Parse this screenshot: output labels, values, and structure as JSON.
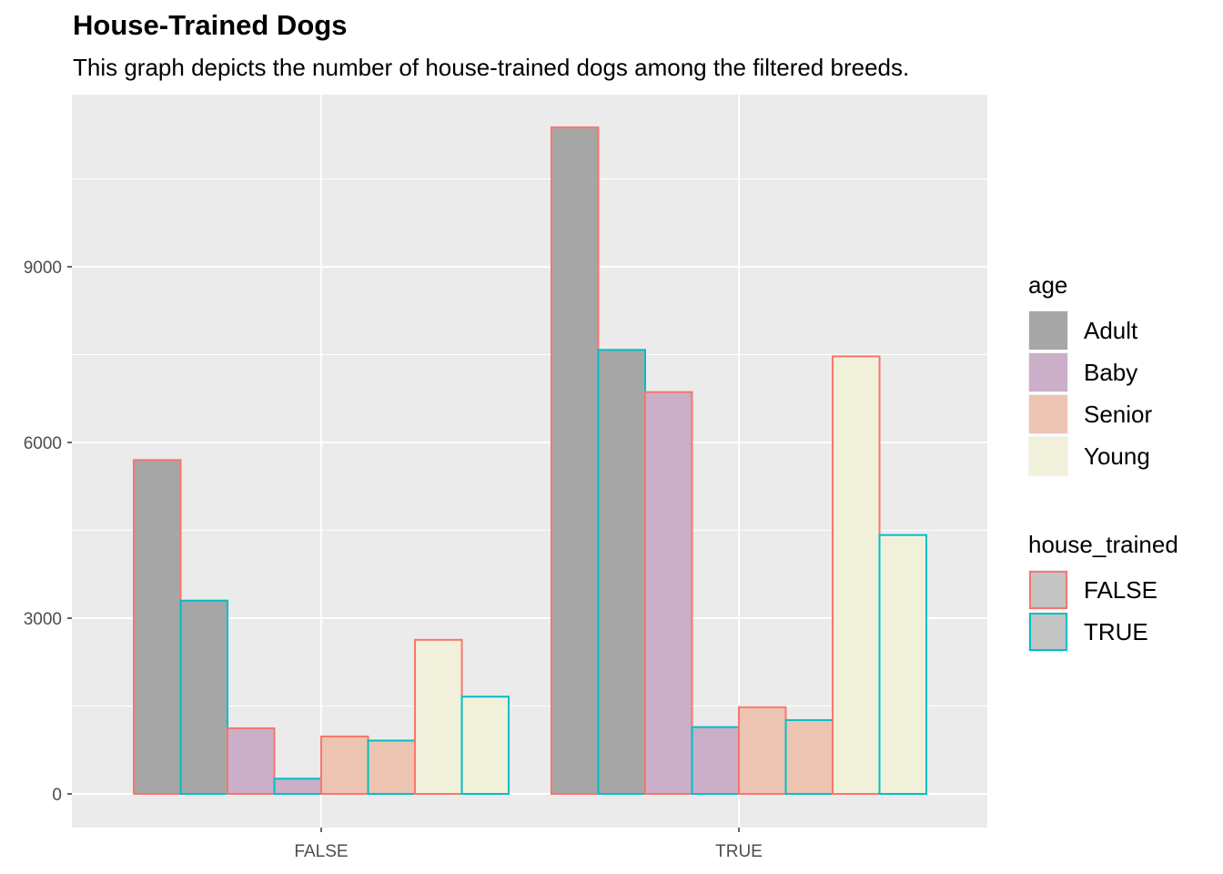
{
  "chart_data": {
    "type": "bar",
    "title": "House-Trained Dogs",
    "subtitle": "This graph depicts the number of house-trained dogs among the filtered breeds.",
    "xlabel": "",
    "ylabel": "",
    "ylim": [
      -600,
      11900
    ],
    "yticks": [
      0,
      3000,
      6000,
      9000
    ],
    "categories": [
      "FALSE",
      "TRUE"
    ],
    "grid": true,
    "legend_position": "right",
    "fill_legend": {
      "title": "age",
      "entries": [
        {
          "label": "Adult",
          "color": "#a6a6a6"
        },
        {
          "label": "Baby",
          "color": "#cbaec7"
        },
        {
          "label": "Senior",
          "color": "#edc4b2"
        },
        {
          "label": "Young",
          "color": "#f1f1db"
        }
      ]
    },
    "color_legend": {
      "title": "house_trained",
      "entries": [
        {
          "label": "FALSE",
          "color": "#f8766d"
        },
        {
          "label": "TRUE",
          "color": "#00bfc4"
        }
      ]
    },
    "bars": [
      {
        "category": "FALSE",
        "age": "Adult",
        "house_trained": "FALSE",
        "value": 5700
      },
      {
        "category": "FALSE",
        "age": "Adult",
        "house_trained": "TRUE",
        "value": 3300
      },
      {
        "category": "FALSE",
        "age": "Baby",
        "house_trained": "FALSE",
        "value": 1120
      },
      {
        "category": "FALSE",
        "age": "Baby",
        "house_trained": "TRUE",
        "value": 260
      },
      {
        "category": "FALSE",
        "age": "Senior",
        "house_trained": "FALSE",
        "value": 980
      },
      {
        "category": "FALSE",
        "age": "Senior",
        "house_trained": "TRUE",
        "value": 910
      },
      {
        "category": "FALSE",
        "age": "Young",
        "house_trained": "FALSE",
        "value": 2630
      },
      {
        "category": "FALSE",
        "age": "Young",
        "house_trained": "TRUE",
        "value": 1660
      },
      {
        "category": "TRUE",
        "age": "Adult",
        "house_trained": "FALSE",
        "value": 11380
      },
      {
        "category": "TRUE",
        "age": "Adult",
        "house_trained": "TRUE",
        "value": 7580
      },
      {
        "category": "TRUE",
        "age": "Baby",
        "house_trained": "FALSE",
        "value": 6860
      },
      {
        "category": "TRUE",
        "age": "Baby",
        "house_trained": "TRUE",
        "value": 1140
      },
      {
        "category": "TRUE",
        "age": "Senior",
        "house_trained": "FALSE",
        "value": 1480
      },
      {
        "category": "TRUE",
        "age": "Senior",
        "house_trained": "TRUE",
        "value": 1260
      },
      {
        "category": "TRUE",
        "age": "Young",
        "house_trained": "FALSE",
        "value": 7470
      },
      {
        "category": "TRUE",
        "age": "Young",
        "house_trained": "TRUE",
        "value": 4420
      }
    ]
  }
}
